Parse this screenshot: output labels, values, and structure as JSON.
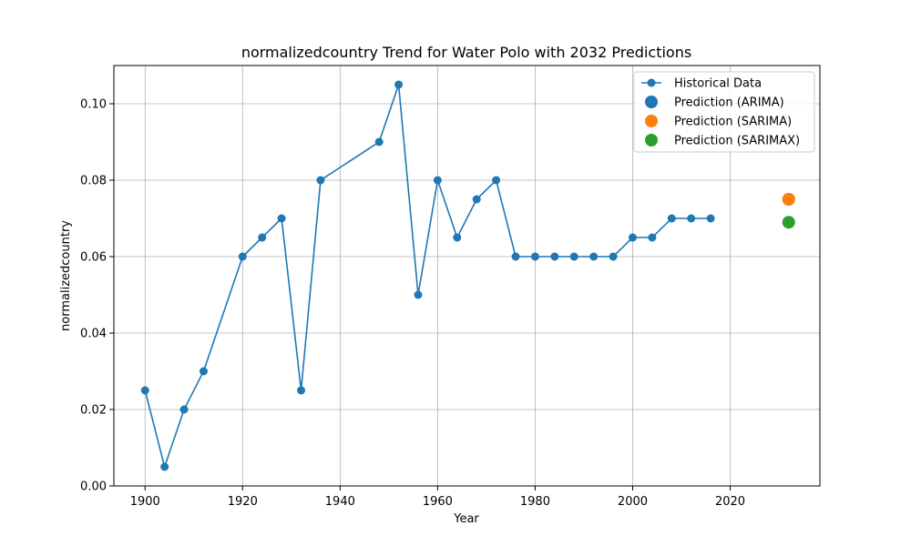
{
  "chart_data": {
    "type": "line",
    "title": "normalizedcountry Trend for Water Polo with 2032 Predictions",
    "xlabel": "Year",
    "ylabel": "normalizedcountry",
    "xlim": [
      1893.6,
      2038.4
    ],
    "ylim": [
      0.0,
      0.11
    ],
    "xticks": [
      1900,
      1920,
      1940,
      1960,
      1980,
      2000,
      2020
    ],
    "yticks": [
      0.0,
      0.02,
      0.04,
      0.06,
      0.08,
      0.1
    ],
    "ytick_labels": [
      "0.00",
      "0.02",
      "0.04",
      "0.06",
      "0.08",
      "0.10"
    ],
    "grid": true,
    "legend_position": "top-right",
    "series": [
      {
        "name": "Historical Data",
        "kind": "line-markers",
        "color": "#1f77b4",
        "x": [
          1900,
          1904,
          1908,
          1912,
          1920,
          1924,
          1928,
          1932,
          1936,
          1948,
          1952,
          1956,
          1960,
          1964,
          1968,
          1972,
          1976,
          1980,
          1984,
          1988,
          1992,
          1996,
          2000,
          2004,
          2008,
          2012,
          2016
        ],
        "y": [
          0.025,
          0.005,
          0.02,
          0.03,
          0.06,
          0.065,
          0.07,
          0.025,
          0.08,
          0.09,
          0.105,
          0.05,
          0.08,
          0.065,
          0.075,
          0.08,
          0.06,
          0.06,
          0.06,
          0.06,
          0.06,
          0.06,
          0.065,
          0.065,
          0.07,
          0.07,
          0.07
        ]
      },
      {
        "name": "Prediction (ARIMA)",
        "kind": "point",
        "color": "#1f77b4",
        "x": [
          2032
        ],
        "y": [
          0.075
        ]
      },
      {
        "name": "Prediction (SARIMA)",
        "kind": "point",
        "color": "#ff7f0e",
        "x": [
          2032
        ],
        "y": [
          0.075
        ]
      },
      {
        "name": "Prediction (SARIMAX)",
        "kind": "point",
        "color": "#2ca02c",
        "x": [
          2032
        ],
        "y": [
          0.069
        ]
      }
    ]
  }
}
